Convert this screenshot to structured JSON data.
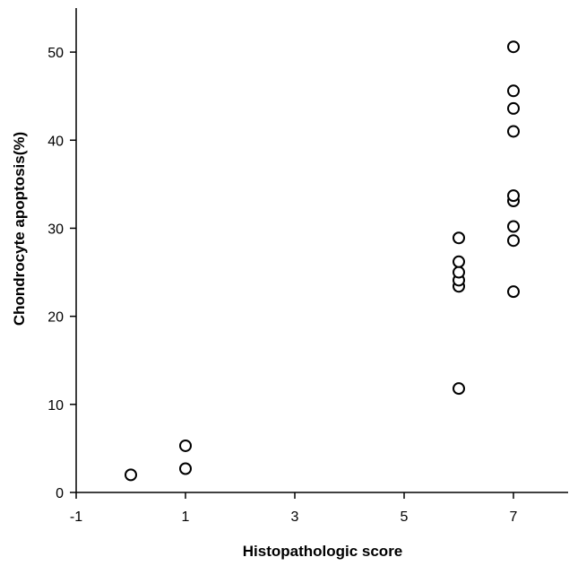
{
  "chart_data": {
    "type": "scatter",
    "title": "",
    "xlabel": "Histopathologic score",
    "ylabel": "Chondrocyte apoptosis(%)",
    "xlim": [
      -1,
      8
    ],
    "ylim": [
      0,
      55
    ],
    "x_ticks": [
      -1,
      1,
      3,
      5,
      7
    ],
    "y_ticks": [
      0,
      10,
      20,
      30,
      40,
      50
    ],
    "grid": false,
    "legend": "none",
    "marker": "open-circle",
    "color": "#000000",
    "series": [
      {
        "points": [
          {
            "x": 0,
            "y": 2.0
          },
          {
            "x": 1,
            "y": 2.7
          },
          {
            "x": 1,
            "y": 5.3
          },
          {
            "x": 6,
            "y": 11.8
          },
          {
            "x": 6,
            "y": 23.4
          },
          {
            "x": 6,
            "y": 24.1
          },
          {
            "x": 6,
            "y": 25.0
          },
          {
            "x": 6,
            "y": 26.2
          },
          {
            "x": 6,
            "y": 28.9
          },
          {
            "x": 7,
            "y": 22.8
          },
          {
            "x": 7,
            "y": 28.6
          },
          {
            "x": 7,
            "y": 30.2
          },
          {
            "x": 7,
            "y": 33.1
          },
          {
            "x": 7,
            "y": 33.7
          },
          {
            "x": 7,
            "y": 41.0
          },
          {
            "x": 7,
            "y": 43.6
          },
          {
            "x": 7,
            "y": 45.6
          },
          {
            "x": 7,
            "y": 50.6
          }
        ]
      }
    ]
  }
}
